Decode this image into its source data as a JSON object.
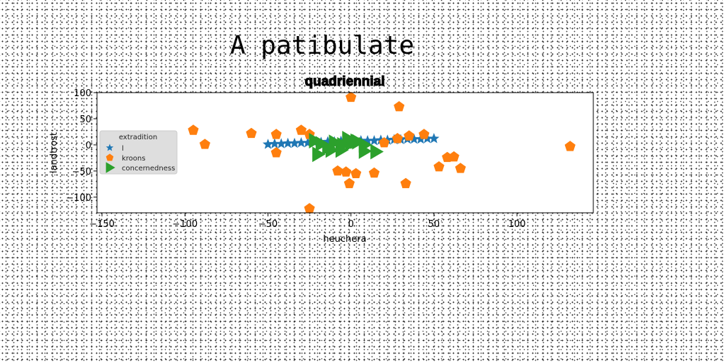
{
  "figure": {
    "suptitle": "A patibulate"
  },
  "chart_data": {
    "type": "scatter",
    "title": "quadriennial",
    "xlabel": "heuchera",
    "ylabel": "landtrost",
    "xlim": [
      -153,
      146
    ],
    "ylim": [
      -130,
      100
    ],
    "xticks": [
      -150,
      -100,
      -50,
      0,
      50,
      100
    ],
    "yticks": [
      100,
      50,
      0,
      -50,
      -100
    ],
    "grid": false,
    "legend": {
      "title": "extradition",
      "placement": "center-left",
      "entries": [
        "l",
        "kroons",
        "concernedness"
      ]
    },
    "series": [
      {
        "name": "l",
        "marker": "star",
        "color": "#1f77b4",
        "x": [
          -50,
          -46,
          -42,
          -38,
          -34,
          -30,
          -26,
          -22,
          -18,
          -14,
          -10,
          -6,
          -2,
          2,
          6,
          10,
          14,
          18,
          22,
          26,
          30,
          34,
          38,
          42,
          46,
          50
        ],
        "y": [
          1,
          2,
          2,
          3,
          3,
          4,
          4,
          5,
          5,
          6,
          6,
          7,
          7,
          7,
          8,
          8,
          8,
          9,
          9,
          10,
          10,
          11,
          11,
          11,
          12,
          12
        ]
      },
      {
        "name": "kroons",
        "marker": "pentagon",
        "color": "#ff7f0e",
        "x": [
          -95,
          -88,
          -60,
          -45,
          -45,
          -30,
          -25,
          -25,
          0,
          -8,
          -3,
          3,
          -1,
          14,
          20,
          28,
          29,
          33,
          35,
          44,
          53,
          58,
          62,
          66,
          132
        ],
        "y": [
          28,
          1,
          22,
          20,
          -15,
          28,
          20,
          -122,
          91,
          -50,
          -52,
          -55,
          -74,
          -54,
          4,
          12,
          73,
          -74,
          17,
          20,
          -42,
          -24,
          -23,
          -45,
          -3
        ]
      },
      {
        "name": "concernedness",
        "marker": "triangle-right",
        "color": "#2ca02c",
        "x": [
          -22,
          -18,
          -14,
          -10,
          -6,
          -2,
          0,
          4,
          8,
          -20,
          -12,
          -5,
          3,
          8,
          15
        ],
        "y": [
          8,
          2,
          -5,
          5,
          -10,
          12,
          3,
          6,
          0,
          -18,
          -10,
          0,
          7,
          -12,
          -13
        ]
      }
    ]
  }
}
